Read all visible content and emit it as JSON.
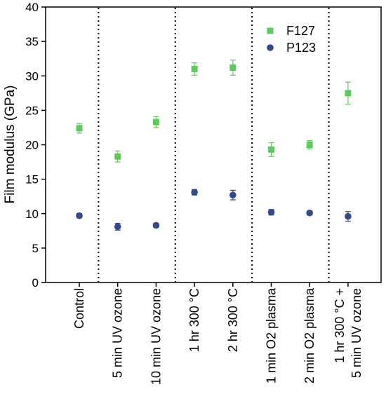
{
  "chart_data": {
    "type": "scatter",
    "title": "",
    "xlabel": "",
    "ylabel": "Film modulus (GPa)",
    "ylim": [
      0,
      40
    ],
    "yticks": [
      0,
      5,
      10,
      15,
      20,
      25,
      30,
      35,
      40
    ],
    "grid": false,
    "legend_position": "top-right",
    "categories": [
      "Control",
      "5 min UV ozone",
      "10 min UV ozone",
      "1 hr 300 °C",
      "2 hr 300 °C",
      "1 min O2 plasma",
      "2 min O2 plasma",
      "1 hr 300 °C + 5 min UV ozone"
    ],
    "category_lines": [
      [
        "Control"
      ],
      [
        "5 min UV ozone"
      ],
      [
        "10 min UV ozone"
      ],
      [
        "1 hr 300 °C"
      ],
      [
        "2 hr 300 °C"
      ],
      [
        "1 min O2 plasma"
      ],
      [
        "2 min O2 plasma"
      ],
      [
        "1 hr 300 °C +",
        "5 min UV ozone"
      ]
    ],
    "group_separators_after_index": [
      0,
      2,
      4,
      6
    ],
    "series": [
      {
        "name": "F127",
        "marker": "square",
        "color": "#5ec95e",
        "values": [
          22.4,
          18.3,
          23.3,
          31.0,
          31.2,
          19.3,
          20.0,
          27.5
        ],
        "errors": [
          0.7,
          0.8,
          0.8,
          0.9,
          1.1,
          1.0,
          0.6,
          1.6
        ]
      },
      {
        "name": "P123",
        "marker": "circle",
        "color": "#33498a",
        "values": [
          9.7,
          8.1,
          8.3,
          13.1,
          12.7,
          10.2,
          10.1,
          9.6
        ],
        "errors": [
          0.3,
          0.5,
          0.3,
          0.4,
          0.7,
          0.4,
          0.3,
          0.7
        ]
      }
    ]
  }
}
